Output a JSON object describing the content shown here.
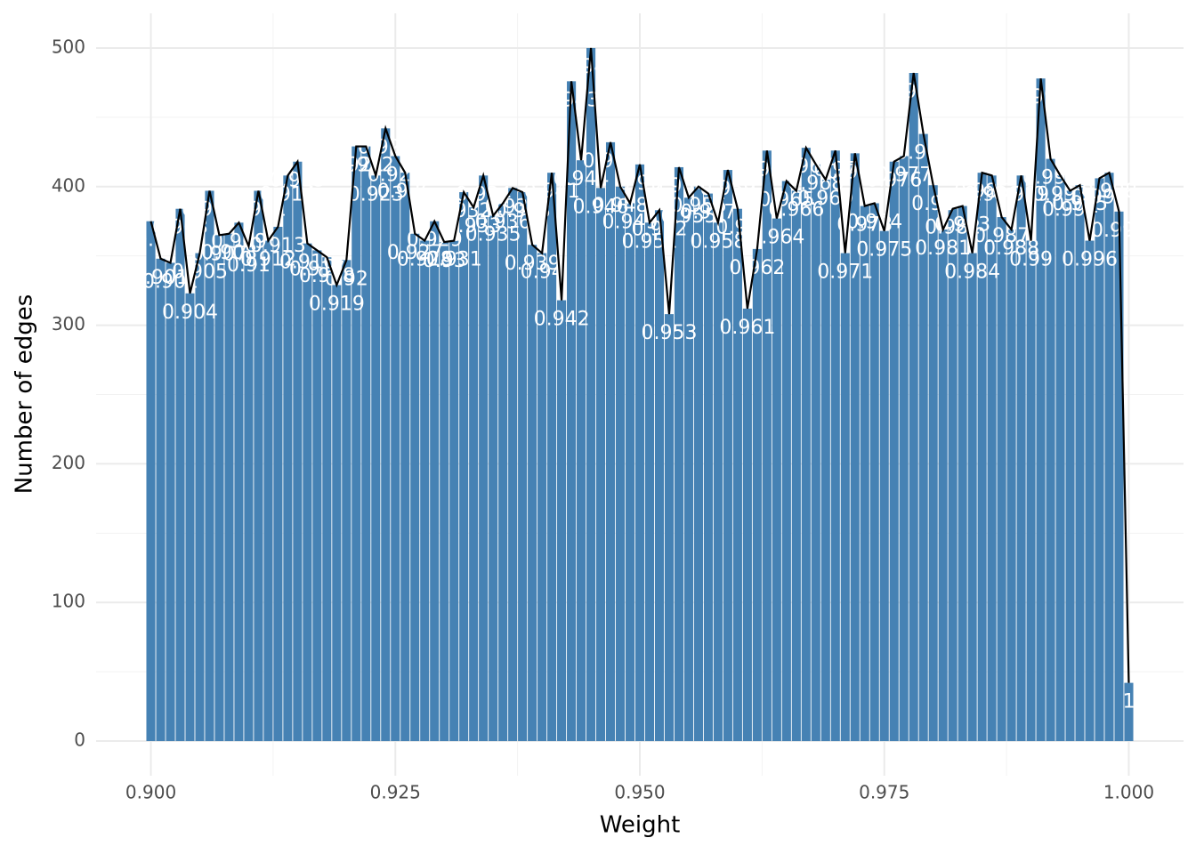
{
  "chart_data": {
    "type": "bar",
    "x_label": "Weight",
    "y_label": "Number of edges",
    "color": "#4682b4",
    "line_color": "#000000",
    "label_color": "#ffffff",
    "x": [
      0.9,
      0.901,
      0.902,
      0.903,
      0.904,
      0.905,
      0.906,
      0.907,
      0.908,
      0.909,
      0.91,
      0.911,
      0.912,
      0.913,
      0.914,
      0.915,
      0.916,
      0.917,
      0.918,
      0.919,
      0.92,
      0.921,
      0.922,
      0.923,
      0.924,
      0.925,
      0.926,
      0.927,
      0.928,
      0.929,
      0.93,
      0.931,
      0.932,
      0.933,
      0.934,
      0.935,
      0.936,
      0.937,
      0.938,
      0.939,
      0.94,
      0.941,
      0.942,
      0.943,
      0.944,
      0.945,
      0.946,
      0.947,
      0.948,
      0.949,
      0.95,
      0.951,
      0.952,
      0.953,
      0.954,
      0.955,
      0.956,
      0.957,
      0.958,
      0.959,
      0.96,
      0.961,
      0.962,
      0.963,
      0.964,
      0.965,
      0.966,
      0.967,
      0.968,
      0.969,
      0.97,
      0.971,
      0.972,
      0.973,
      0.974,
      0.975,
      0.976,
      0.977,
      0.978,
      0.979,
      0.98,
      0.981,
      0.982,
      0.983,
      0.984,
      0.985,
      0.986,
      0.987,
      0.988,
      0.989,
      0.99,
      0.991,
      0.992,
      0.993,
      0.994,
      0.995,
      0.996,
      0.997,
      0.998,
      0.999,
      1
    ],
    "values": [
      375,
      348,
      345,
      384,
      323,
      352,
      397,
      365,
      366,
      374,
      357,
      397,
      361,
      371,
      408,
      418,
      359,
      354,
      349,
      329,
      347,
      429,
      429,
      408,
      442,
      422,
      410,
      366,
      361,
      375,
      360,
      361,
      396,
      385,
      408,
      379,
      388,
      399,
      396,
      358,
      352,
      410,
      318,
      476,
      419,
      500,
      399,
      432,
      400,
      388,
      416,
      374,
      383,
      308,
      414,
      392,
      400,
      395,
      374,
      412,
      384,
      312,
      355,
      426,
      377,
      404,
      397,
      428,
      416,
      405,
      426,
      352,
      424,
      386,
      388,
      368,
      418,
      422,
      482,
      438,
      401,
      369,
      384,
      386,
      352,
      410,
      408,
      378,
      369,
      408,
      361,
      478,
      420,
      408,
      397,
      401,
      361,
      406,
      410,
      382,
      42
    ],
    "xlim": [
      0.8944,
      1.0056
    ],
    "xticks": [
      {
        "value": 0.9,
        "label": "0.900"
      },
      {
        "value": 0.925,
        "label": "0.925"
      },
      {
        "value": 0.95,
        "label": "0.950"
      },
      {
        "value": 0.975,
        "label": "0.975"
      },
      {
        "value": 1,
        "label": "1.000"
      }
    ],
    "ylim": [
      -25,
      525
    ],
    "yticks": [
      0,
      100,
      200,
      300,
      400,
      500
    ],
    "grid": true
  }
}
